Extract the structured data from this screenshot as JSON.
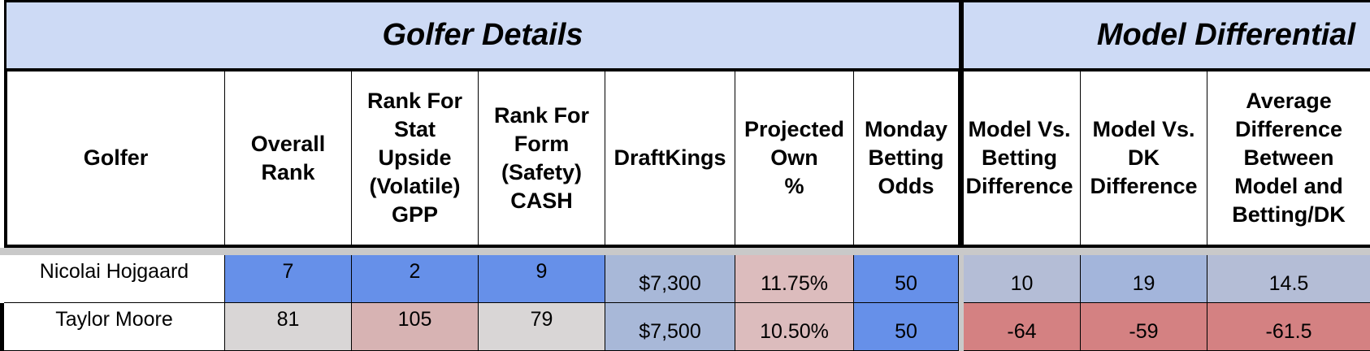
{
  "colors": {
    "header_band": "#cddaf5",
    "rank_blue": "#6690e9",
    "rank_grey": "#d9d6d6",
    "rank_pink": "#d7b3b3",
    "salary_blue": "#a8b8d8",
    "own_pink": "#dcbcbd",
    "diff_grey_blue": "#b4bdd6",
    "diff_blue": "#a3b5db",
    "diff_red": "#d48182"
  },
  "sections": {
    "golfer_details": "Golfer Details",
    "model_differential": "Model Differential"
  },
  "columns": [
    [
      "Golfer"
    ],
    [
      "Overall",
      "Rank"
    ],
    [
      "Rank For",
      "Stat",
      "Upside",
      "(Volatile)",
      "GPP"
    ],
    [
      "Rank For",
      "Form",
      "(Safety)",
      "CASH"
    ],
    [
      "DraftKings"
    ],
    [
      "Projected",
      "Own",
      "%"
    ],
    [
      "Monday",
      "Betting",
      "Odds"
    ],
    [
      "Model Vs.",
      "Betting",
      "Difference"
    ],
    [
      "Model Vs.",
      "DK",
      "Difference"
    ],
    [
      "Average",
      "Difference",
      "Between",
      "Model and",
      "Betting/DK"
    ]
  ],
  "rows": [
    {
      "golfer": "Nicolai Hojgaard",
      "overall_rank": "7",
      "rank_gpp": "2",
      "rank_cash": "9",
      "draftkings": "$7,300",
      "projected_own": "11.75%",
      "monday_odds": "50",
      "model_vs_betting": "10",
      "model_vs_dk": "19",
      "average_difference": "14.5"
    },
    {
      "golfer": "Taylor Moore",
      "overall_rank": "81",
      "rank_gpp": "105",
      "rank_cash": "79",
      "draftkings": "$7,500",
      "projected_own": "10.50%",
      "monday_odds": "50",
      "model_vs_betting": "-64",
      "model_vs_dk": "-59",
      "average_difference": "-61.5"
    }
  ]
}
